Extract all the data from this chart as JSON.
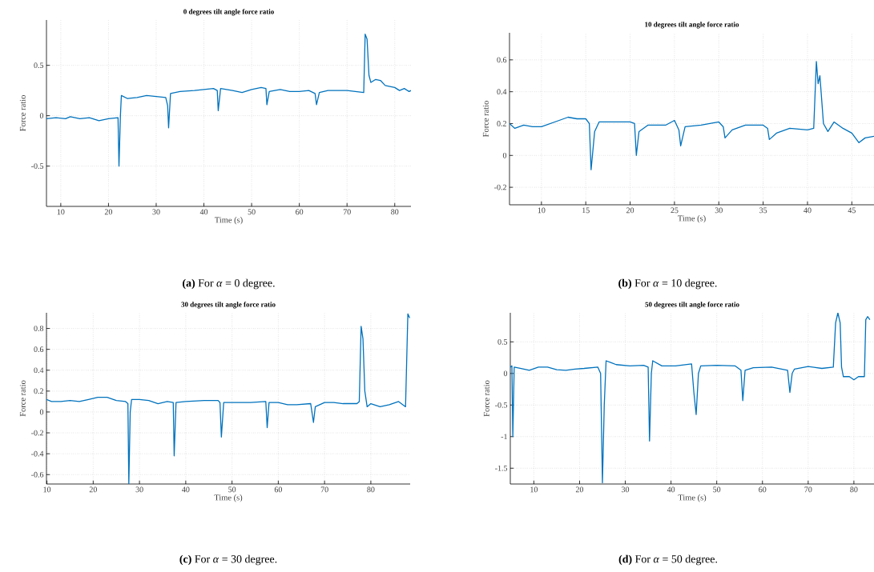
{
  "chart_data": [
    {
      "type": "line",
      "title": "0 degrees tilt angle force ratio",
      "xlabel": "Time (s)",
      "ylabel": "Force ratio",
      "annotations": [
        "**(a)** For *α* = 0 degree."
      ],
      "color": "#0072bd",
      "grid": true,
      "xlim": [
        7,
        83.4
      ],
      "ylim": [
        -0.9,
        0.95
      ],
      "xticks": [
        10,
        20,
        30,
        40,
        50,
        60,
        70,
        80
      ],
      "yticks": [
        -0.5,
        0,
        0.5
      ],
      "x": [
        7,
        9,
        11,
        12,
        14,
        16,
        18,
        20,
        22,
        22.2,
        22.5,
        22.7,
        24,
        26,
        28,
        30,
        32,
        32.4,
        32.6,
        33,
        35,
        38,
        40,
        42,
        42.8,
        43,
        43.5,
        46,
        48,
        50,
        52,
        53,
        53.2,
        53.7,
        56,
        58,
        60,
        62,
        63.3,
        63.6,
        64.2,
        66,
        70,
        73.5,
        73.8,
        74.2,
        74.6,
        75,
        76,
        77,
        78,
        79,
        80,
        81,
        82,
        83,
        83.4
      ],
      "values": [
        -0.03,
        -0.02,
        -0.03,
        -0.01,
        -0.03,
        -0.02,
        -0.05,
        -0.03,
        -0.02,
        -0.5,
        0.0,
        0.2,
        0.17,
        0.18,
        0.2,
        0.19,
        0.18,
        0.1,
        -0.12,
        0.22,
        0.24,
        0.25,
        0.26,
        0.27,
        0.25,
        0.05,
        0.27,
        0.25,
        0.23,
        0.26,
        0.28,
        0.27,
        0.11,
        0.24,
        0.26,
        0.24,
        0.24,
        0.25,
        0.22,
        0.11,
        0.23,
        0.25,
        0.25,
        0.23,
        0.81,
        0.76,
        0.4,
        0.33,
        0.36,
        0.35,
        0.3,
        0.29,
        0.28,
        0.25,
        0.27,
        0.24,
        0.25
      ]
    },
    {
      "type": "line",
      "title": "10 degrees tilt angle force ratio",
      "xlabel": "Time (s)",
      "ylabel": "Force ratio",
      "annotations": [
        "**(b)** For *α* = 10 degree."
      ],
      "color": "#0072bd",
      "grid": true,
      "xlim": [
        6.4,
        47.5
      ],
      "ylim": [
        -0.31,
        0.77
      ],
      "xticks": [
        10,
        15,
        20,
        25,
        30,
        35,
        40,
        45
      ],
      "yticks": [
        -0.2,
        0,
        0.2,
        0.4,
        0.6
      ],
      "x": [
        6.4,
        7,
        8,
        9,
        10,
        11,
        12,
        13,
        14,
        15,
        15.4,
        15.6,
        16,
        16.5,
        18,
        20,
        20.5,
        20.7,
        21,
        22,
        24,
        25,
        25.5,
        25.7,
        26.2,
        28,
        30,
        30.5,
        30.7,
        31.5,
        33,
        35,
        35.5,
        35.7,
        36.5,
        38,
        40,
        40.7,
        41,
        41.2,
        41.4,
        41.8,
        42.3,
        43,
        44,
        45,
        45.8,
        46.5,
        47.5
      ],
      "values": [
        0.2,
        0.17,
        0.19,
        0.18,
        0.18,
        0.2,
        0.22,
        0.24,
        0.23,
        0.23,
        0.2,
        -0.09,
        0.15,
        0.21,
        0.21,
        0.21,
        0.2,
        0.0,
        0.15,
        0.19,
        0.19,
        0.22,
        0.16,
        0.06,
        0.18,
        0.19,
        0.21,
        0.18,
        0.11,
        0.16,
        0.19,
        0.19,
        0.17,
        0.1,
        0.14,
        0.17,
        0.16,
        0.17,
        0.59,
        0.45,
        0.5,
        0.2,
        0.15,
        0.21,
        0.17,
        0.14,
        0.08,
        0.11,
        0.12
      ]
    },
    {
      "type": "line",
      "title": "30 degrees tilt angle force ratio",
      "xlabel": "Time (s)",
      "ylabel": "Force ratio",
      "annotations": [
        "**(c)** For *α* = 30 degree."
      ],
      "color": "#0072bd",
      "grid": true,
      "xlim": [
        9.9,
        88.5
      ],
      "ylim": [
        -0.69,
        0.95
      ],
      "xticks": [
        10,
        20,
        30,
        40,
        50,
        60,
        70,
        80
      ],
      "yticks": [
        -0.6,
        -0.4,
        -0.2,
        0,
        0.2,
        0.4,
        0.6,
        0.8
      ],
      "x": [
        9.9,
        11,
        13,
        15,
        17,
        19,
        21,
        23,
        25,
        27,
        27.5,
        27.7,
        28,
        28.3,
        30,
        32,
        34,
        36,
        37.3,
        37.5,
        37.9,
        40,
        44,
        47,
        47.4,
        47.7,
        48.2,
        50,
        54,
        57.3,
        57.6,
        58,
        60,
        62,
        64,
        67,
        67.6,
        68,
        70,
        72,
        74,
        77,
        77.5,
        77.9,
        78.3,
        78.7,
        79.2,
        80,
        82,
        84,
        86,
        87.5,
        88,
        88.4
      ],
      "values": [
        0.12,
        0.1,
        0.1,
        0.11,
        0.1,
        0.12,
        0.14,
        0.14,
        0.11,
        0.1,
        0.08,
        -0.69,
        0.0,
        0.12,
        0.12,
        0.11,
        0.08,
        0.1,
        0.09,
        -0.42,
        0.09,
        0.1,
        0.11,
        0.11,
        0.09,
        -0.24,
        0.09,
        0.09,
        0.09,
        0.1,
        -0.15,
        0.09,
        0.09,
        0.07,
        0.07,
        0.08,
        -0.1,
        0.05,
        0.09,
        0.09,
        0.08,
        0.08,
        0.1,
        0.82,
        0.7,
        0.2,
        0.05,
        0.08,
        0.05,
        0.07,
        0.1,
        0.05,
        0.94,
        0.9
      ]
    },
    {
      "type": "line",
      "title": "50 degrees tilt angle force ratio",
      "xlabel": "Time (s)",
      "ylabel": "Force ratio",
      "annotations": [
        "**(d)** For *α* = 50 degree."
      ],
      "color": "#0072bd",
      "grid": true,
      "xlim": [
        4.85,
        84.4
      ],
      "ylim": [
        -1.75,
        0.96
      ],
      "xticks": [
        10,
        20,
        30,
        40,
        50,
        60,
        70,
        80
      ],
      "yticks": [
        -1.5,
        -1,
        -0.5,
        0,
        0.5
      ],
      "x": [
        4.85,
        5.2,
        5.4,
        5.7,
        7,
        9,
        11,
        13,
        15,
        17,
        19,
        21,
        24,
        24.6,
        25,
        25.4,
        25.8,
        28,
        31,
        34,
        35,
        35.3,
        35.7,
        36,
        38,
        41,
        44.5,
        45,
        45.5,
        46,
        46.5,
        50,
        54,
        55.3,
        55.7,
        56.2,
        58,
        62,
        65.5,
        66,
        66.5,
        67,
        70,
        73,
        75.5,
        76,
        76.5,
        77,
        77.3,
        77.7,
        79,
        80,
        81,
        82.3,
        82.6,
        83,
        83.5
      ],
      "values": [
        0.1,
        0.12,
        -1.0,
        0.1,
        0.08,
        0.05,
        0.1,
        0.1,
        0.06,
        0.05,
        0.07,
        0.08,
        0.1,
        0.0,
        -1.73,
        -0.5,
        0.2,
        0.14,
        0.12,
        0.13,
        0.1,
        -1.07,
        0.0,
        0.2,
        0.12,
        0.12,
        0.15,
        -0.3,
        -0.65,
        0.0,
        0.12,
        0.13,
        0.12,
        0.05,
        -0.43,
        0.05,
        0.09,
        0.1,
        0.05,
        -0.3,
        0.0,
        0.07,
        0.11,
        0.08,
        0.1,
        0.8,
        0.96,
        0.8,
        0.1,
        -0.05,
        -0.05,
        -0.1,
        -0.05,
        -0.05,
        0.85,
        0.9,
        0.85
      ]
    }
  ]
}
